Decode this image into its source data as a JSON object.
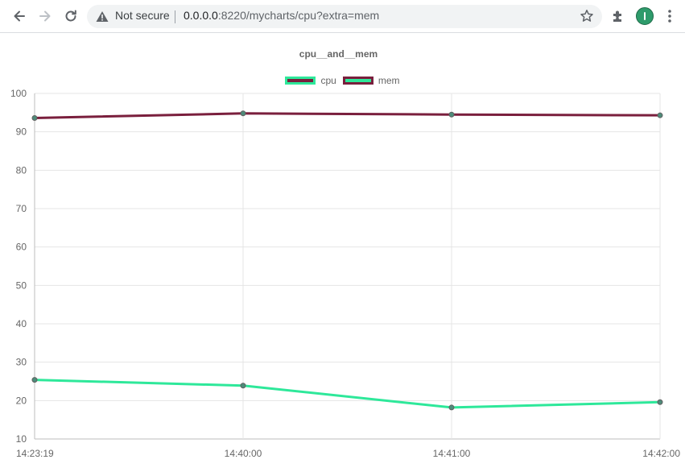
{
  "browser": {
    "security_label": "Not secure",
    "url_host": "0.0.0.0",
    "url_rest": ":8220/mycharts/cpu?extra=mem",
    "icons": [
      "back-icon",
      "forward-icon",
      "reload-icon",
      "warning-icon",
      "star-icon",
      "puzzle-icon",
      "avatar",
      "menu-icon"
    ]
  },
  "chart_data": {
    "type": "line",
    "title": "cpu__and__mem",
    "categories": [
      "14:23:19",
      "14:40:00",
      "14:41:00",
      "14:42:00"
    ],
    "series": [
      {
        "name": "cpu",
        "values": [
          93.6,
          94.8,
          94.5,
          94.3
        ],
        "line_color": "#7a1f3d",
        "fill_color": "#7a1f3d",
        "border_color": "#2ee89a"
      },
      {
        "name": "mem",
        "values": [
          25.4,
          23.9,
          18.2,
          19.6
        ],
        "line_color": "#2ee89a",
        "fill_color": "#2ee89a",
        "border_color": "#7a1f3d"
      }
    ],
    "ylim": [
      10,
      100
    ],
    "y_ticks": [
      10,
      20,
      30,
      40,
      50,
      60,
      70,
      80,
      90,
      100
    ],
    "legend_position": "top",
    "grid": true
  }
}
